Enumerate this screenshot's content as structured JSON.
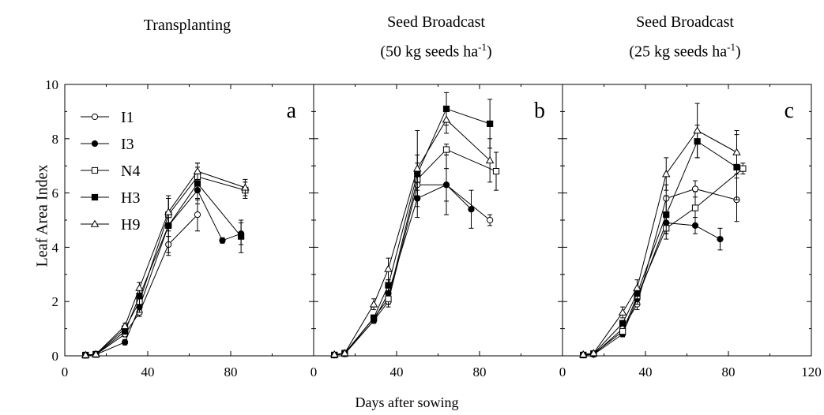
{
  "ylabel": "Leaf Area Index",
  "xlabel": "Days after sowing",
  "chart_data": [
    {
      "type": "line",
      "title": "Transplanting",
      "subtitle": "",
      "subtitle_unit": "",
      "panel_label": "a",
      "xlim": [
        0,
        120
      ],
      "ylim": [
        0,
        10
      ],
      "xticks": [
        0,
        40,
        80
      ],
      "yticks": [
        0,
        2,
        4,
        6,
        8,
        10
      ],
      "legend": "top-left",
      "series": [
        {
          "name": "I1",
          "marker": "circle-open",
          "x": [
            10,
            15,
            29,
            36,
            50,
            64,
            76,
            85
          ],
          "y": [
            0.02,
            0.05,
            0.8,
            1.6,
            4.1,
            5.2,
            null,
            null
          ],
          "err": [
            0.05,
            0.05,
            0.1,
            0.15,
            0.3,
            0.6,
            null,
            null
          ]
        },
        {
          "name": "I3",
          "marker": "circle-filled",
          "x": [
            10,
            15,
            29,
            36,
            50,
            64,
            76,
            85
          ],
          "y": [
            0.02,
            0.05,
            0.5,
            1.8,
            4.8,
            6.1,
            4.25,
            4.5
          ],
          "err": [
            0.05,
            0.05,
            0.1,
            0.2,
            0.4,
            0.5,
            0.1,
            0.4
          ]
        },
        {
          "name": "N4",
          "marker": "square-open",
          "x": [
            10,
            15,
            29,
            36,
            50,
            64,
            76,
            85,
            87
          ],
          "y": [
            0.03,
            0.06,
            1.0,
            2.0,
            5.2,
            6.6,
            null,
            null,
            6.1
          ],
          "err": [
            0.05,
            0.05,
            0.1,
            0.3,
            0.6,
            0.5,
            null,
            null,
            0.3
          ]
        },
        {
          "name": "H3",
          "marker": "square-filled",
          "x": [
            10,
            15,
            29,
            36,
            50,
            64,
            85
          ],
          "y": [
            0.02,
            0.05,
            0.9,
            2.2,
            4.8,
            6.35,
            4.4
          ],
          "err": [
            0.05,
            0.05,
            0.1,
            0.5,
            1.1,
            0.6,
            0.6
          ]
        },
        {
          "name": "H9",
          "marker": "triangle-open",
          "x": [
            10,
            15,
            29,
            36,
            50,
            64,
            87
          ],
          "y": [
            0.03,
            0.06,
            1.1,
            2.5,
            5.3,
            6.8,
            6.2
          ],
          "err": [
            0.05,
            0.05,
            0.1,
            0.2,
            0.5,
            0.3,
            0.3
          ]
        }
      ]
    },
    {
      "type": "line",
      "title": "Seed Broadcast",
      "subtitle": "(50 kg seeds ha",
      "subtitle_unit": "-1",
      "panel_label": "b",
      "xlim": [
        0,
        120
      ],
      "ylim": [
        0,
        10
      ],
      "xticks": [
        0,
        40,
        80
      ],
      "yticks": [
        0,
        2,
        4,
        6,
        8,
        10
      ],
      "legend": "none",
      "series": [
        {
          "name": "I1",
          "marker": "circle-open",
          "x": [
            10,
            15,
            29,
            36,
            50,
            64,
            85
          ],
          "y": [
            0.03,
            0.07,
            1.3,
            2.0,
            6.3,
            6.3,
            5.0
          ],
          "err": [
            0.05,
            0.05,
            0.1,
            0.2,
            0.4,
            0.6,
            0.2
          ]
        },
        {
          "name": "I3",
          "marker": "circle-filled",
          "x": [
            10,
            15,
            29,
            36,
            50,
            64,
            76
          ],
          "y": [
            0.03,
            0.08,
            1.3,
            2.3,
            5.8,
            6.3,
            5.4
          ],
          "err": [
            0.05,
            0.05,
            0.1,
            0.2,
            0.3,
            1.1,
            0.7
          ]
        },
        {
          "name": "N4",
          "marker": "square-open",
          "x": [
            10,
            15,
            29,
            36,
            50,
            64,
            85,
            88
          ],
          "y": [
            0.03,
            0.08,
            1.4,
            2.1,
            6.5,
            7.6,
            null,
            6.8
          ],
          "err": [
            0.05,
            0.05,
            0.1,
            0.2,
            0.6,
            0.2,
            null,
            0.7
          ]
        },
        {
          "name": "H3",
          "marker": "square-filled",
          "x": [
            10,
            15,
            29,
            36,
            50,
            64,
            85
          ],
          "y": [
            0.03,
            0.1,
            1.4,
            2.6,
            6.7,
            9.1,
            8.55
          ],
          "err": [
            0.05,
            0.05,
            0.1,
            0.2,
            1.6,
            0.6,
            0.9
          ]
        },
        {
          "name": "H9",
          "marker": "triangle-open",
          "x": [
            10,
            15,
            29,
            36,
            50,
            64,
            85
          ],
          "y": [
            0.05,
            0.1,
            1.9,
            3.2,
            6.9,
            8.7,
            7.2
          ],
          "err": [
            0.05,
            0.05,
            0.2,
            0.4,
            0.5,
            0.5,
            0.8
          ]
        }
      ]
    },
    {
      "type": "line",
      "title": "Seed Broadcast",
      "subtitle": "(25 kg seeds ha",
      "subtitle_unit": "-1",
      "panel_label": "c",
      "xlim": [
        0,
        120
      ],
      "ylim": [
        0,
        10
      ],
      "xticks": [
        0,
        40,
        80,
        120
      ],
      "yticks": [
        0,
        2,
        4,
        6,
        8,
        10
      ],
      "legend": "none",
      "series": [
        {
          "name": "I1",
          "marker": "circle-open",
          "x": [
            10,
            15,
            29,
            36,
            50,
            64,
            84
          ],
          "y": [
            0.03,
            0.05,
            1.0,
            1.9,
            5.8,
            6.15,
            5.75
          ],
          "err": [
            0.05,
            0.05,
            0.1,
            0.2,
            0.5,
            0.3,
            0.8
          ]
        },
        {
          "name": "I3",
          "marker": "circle-filled",
          "x": [
            10,
            15,
            29,
            36,
            50,
            64,
            76
          ],
          "y": [
            0.03,
            0.05,
            0.8,
            2.1,
            4.9,
            4.8,
            4.3
          ],
          "err": [
            0.05,
            0.05,
            0.1,
            0.2,
            0.4,
            0.3,
            0.4
          ]
        },
        {
          "name": "N4",
          "marker": "square-open",
          "x": [
            10,
            15,
            29,
            36,
            50,
            64,
            87
          ],
          "y": [
            0.03,
            0.08,
            0.9,
            2.2,
            4.7,
            5.45,
            6.9
          ],
          "err": [
            0.05,
            0.05,
            0.1,
            0.2,
            0.4,
            0.6,
            0.2
          ]
        },
        {
          "name": "H3",
          "marker": "square-filled",
          "x": [
            10,
            15,
            29,
            36,
            50,
            65,
            84
          ],
          "y": [
            0.03,
            0.08,
            1.2,
            2.3,
            5.2,
            7.9,
            6.95
          ],
          "err": [
            0.05,
            0.05,
            0.1,
            0.2,
            0.7,
            0.6,
            1.2
          ]
        },
        {
          "name": "H9",
          "marker": "triangle-open",
          "x": [
            10,
            15,
            29,
            36,
            50,
            65,
            84
          ],
          "y": [
            0.05,
            0.1,
            1.6,
            2.5,
            6.7,
            8.3,
            7.5
          ],
          "err": [
            0.05,
            0.05,
            0.2,
            0.3,
            0.6,
            1.0,
            0.8
          ]
        }
      ]
    }
  ]
}
